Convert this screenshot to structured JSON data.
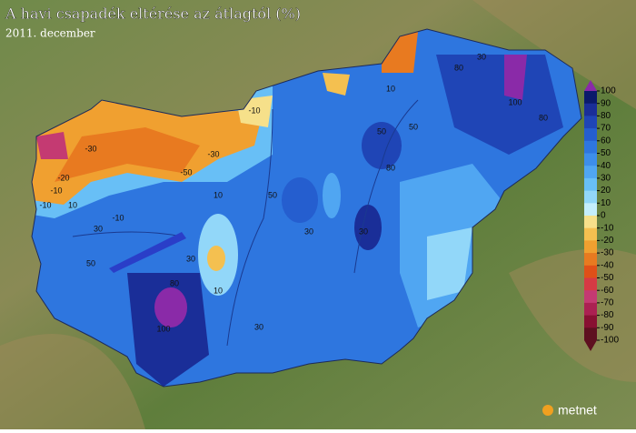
{
  "title": "A havi csapadék eltérése az átlagtól (%)",
  "subtitle": "2011. december",
  "logo": "metnet",
  "legend": {
    "ticks": [
      100,
      90,
      80,
      70,
      60,
      50,
      40,
      30,
      20,
      10,
      0,
      -10,
      -20,
      -30,
      -40,
      -50,
      -60,
      -70,
      -80,
      -90,
      -100
    ],
    "colors": [
      "#0b1a6b",
      "#1a2e98",
      "#1f45b6",
      "#255ecf",
      "#2e76df",
      "#3d8eeb",
      "#50a6f2",
      "#68bff6",
      "#92d7f9",
      "#c4eefc",
      "#f6e08a",
      "#f4c050",
      "#f0a030",
      "#e87a20",
      "#e05018",
      "#d63a44",
      "#c43a72",
      "#ab2052",
      "#881032",
      "#5e1020"
    ],
    "over_color": "#8a2aa8",
    "under_color": "#5e1020"
  },
  "contour_labels": [
    "-30",
    "-50",
    "-30",
    "-10",
    "-10",
    "10",
    "-10",
    "10",
    "30",
    "50",
    "30",
    "10",
    "80",
    "100",
    "30",
    "50",
    "30",
    "50",
    "80",
    "30",
    "100",
    "80",
    "80",
    "50",
    "30",
    "10",
    "-10",
    "-20"
  ]
}
